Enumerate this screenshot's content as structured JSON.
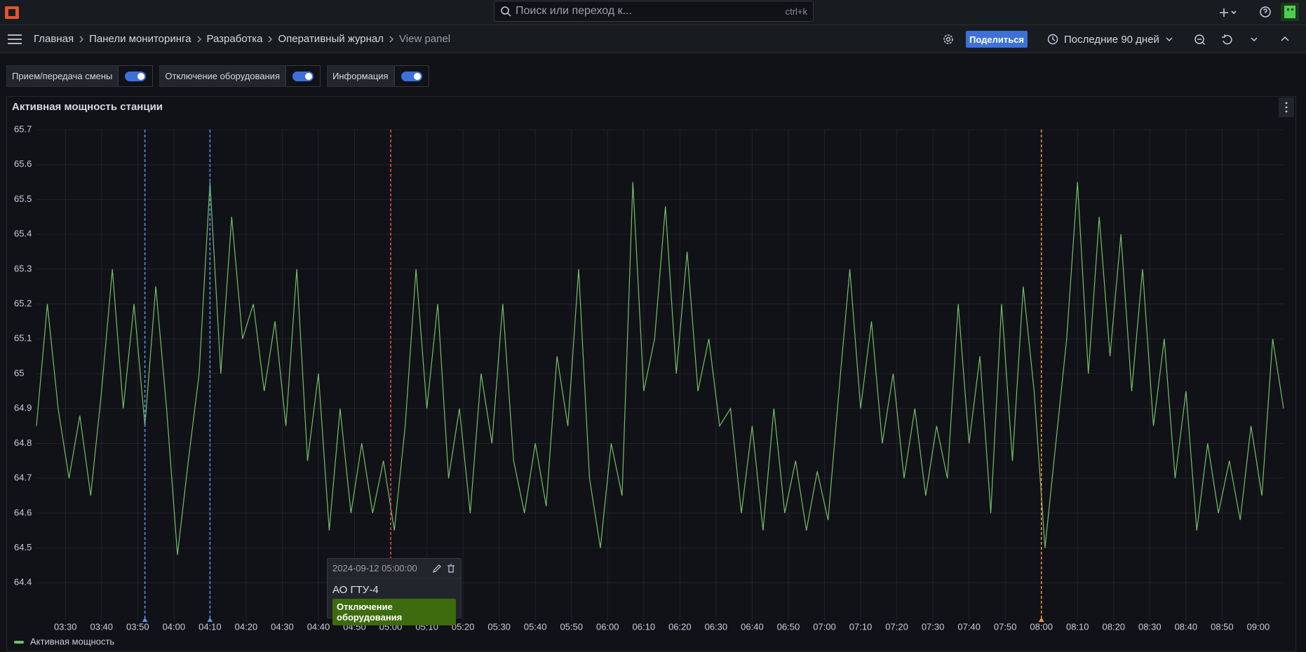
{
  "top_bar": {
    "search_placeholder": "Поиск или переход к...",
    "shortcut": "ctrl+k"
  },
  "breadcrumbs": [
    "Главная",
    "Панели мониторинга",
    "Разработка",
    "Оперативный журнал",
    "View panel"
  ],
  "toolbar": {
    "share": "Поделиться",
    "time_range": "Последние 90 дней"
  },
  "variables": [
    "Прием/передача смены",
    "Отключение оборудования",
    "Информация"
  ],
  "chart_data": {
    "type": "line",
    "title": "Активная мощность станции",
    "x": [
      "03:22",
      "03:25",
      "03:28",
      "03:31",
      "03:34",
      "03:37",
      "03:40",
      "03:43",
      "03:46",
      "03:49",
      "03:52",
      "03:55",
      "03:58",
      "04:01",
      "04:04",
      "04:07",
      "04:10",
      "04:13",
      "04:16",
      "04:19",
      "04:22",
      "04:25",
      "04:28",
      "04:31",
      "04:34",
      "04:37",
      "04:40",
      "04:43",
      "04:46",
      "04:49",
      "04:52",
      "04:55",
      "04:58",
      "05:01",
      "05:04",
      "05:07",
      "05:10",
      "05:13",
      "05:16",
      "05:19",
      "05:22",
      "05:25",
      "05:28",
      "05:31",
      "05:34",
      "05:37",
      "05:40",
      "05:43",
      "05:46",
      "05:49",
      "05:52",
      "05:55",
      "05:58",
      "06:01",
      "06:04",
      "06:07",
      "06:10",
      "06:13",
      "06:16",
      "06:19",
      "06:22",
      "06:25",
      "06:28",
      "06:31",
      "06:34",
      "06:37",
      "06:40",
      "06:43",
      "06:46",
      "06:49",
      "06:52",
      "06:55",
      "06:58",
      "07:01",
      "07:04",
      "07:07",
      "07:10",
      "07:13",
      "07:16",
      "07:19",
      "07:22",
      "07:25",
      "07:28",
      "07:31",
      "07:34",
      "07:37",
      "07:40",
      "07:43",
      "07:46",
      "07:49",
      "07:52",
      "07:55",
      "07:58",
      "08:01",
      "08:04",
      "08:07",
      "08:10",
      "08:13",
      "08:16",
      "08:19",
      "08:22",
      "08:25",
      "08:28",
      "08:31",
      "08:34",
      "08:37",
      "08:40",
      "08:43",
      "08:46",
      "08:49",
      "08:52",
      "08:55",
      "08:58",
      "09:01",
      "09:04",
      "09:07"
    ],
    "xlim": [
      "03:22",
      "09:07"
    ],
    "xticks": [
      "03:30",
      "03:40",
      "03:50",
      "04:00",
      "04:10",
      "04:20",
      "04:30",
      "04:40",
      "04:50",
      "05:00",
      "05:10",
      "05:20",
      "05:30",
      "05:40",
      "05:50",
      "06:00",
      "06:10",
      "06:20",
      "06:30",
      "06:40",
      "06:50",
      "07:00",
      "07:10",
      "07:20",
      "07:30",
      "07:40",
      "07:50",
      "08:00",
      "08:10",
      "08:20",
      "08:30",
      "08:40",
      "08:50",
      "09:00"
    ],
    "ylim": [
      64.29,
      65.7
    ],
    "yticks": [
      64.4,
      64.5,
      64.6,
      64.7,
      64.8,
      64.9,
      65,
      65.1,
      65.2,
      65.3,
      65.4,
      65.5,
      65.6,
      65.7
    ],
    "grid": true,
    "series": [
      {
        "name": "Активная мощность",
        "color": "#73bf69",
        "values": [
          64.85,
          65.2,
          64.9,
          64.7,
          64.88,
          64.65,
          64.95,
          65.3,
          64.9,
          65.2,
          64.85,
          65.25,
          64.9,
          64.48,
          64.75,
          65.0,
          65.55,
          65.0,
          65.45,
          65.1,
          65.2,
          64.95,
          65.15,
          64.85,
          65.3,
          64.75,
          65.0,
          64.55,
          64.9,
          64.6,
          64.8,
          64.6,
          64.75,
          64.55,
          64.85,
          65.3,
          64.9,
          65.2,
          64.7,
          64.9,
          64.6,
          65.0,
          64.8,
          65.2,
          64.75,
          64.6,
          64.8,
          64.62,
          65.05,
          64.85,
          65.3,
          64.7,
          64.5,
          64.8,
          64.65,
          65.55,
          64.95,
          65.1,
          65.48,
          65.0,
          65.35,
          64.95,
          65.1,
          64.85,
          64.9,
          64.6,
          64.85,
          64.55,
          64.9,
          64.6,
          64.75,
          64.55,
          64.72,
          64.58,
          64.95,
          65.3,
          64.9,
          65.15,
          64.8,
          65.0,
          64.7,
          64.9,
          64.65,
          64.85,
          64.7,
          65.2,
          64.8,
          65.05,
          64.6,
          65.2,
          64.75,
          65.25,
          64.95,
          64.5,
          64.8,
          65.1,
          65.55,
          65.0,
          65.45,
          65.05,
          65.4,
          64.95,
          65.3,
          64.85,
          65.1,
          64.7,
          64.95,
          64.55,
          64.8,
          64.6,
          64.75,
          64.58,
          64.85,
          64.65,
          65.1,
          64.9
        ]
      }
    ],
    "annotations": [
      {
        "x": "03:52",
        "color": "#5794f2"
      },
      {
        "x": "04:10",
        "color": "#5794f2"
      },
      {
        "x": "05:00",
        "color": "#f2495c"
      },
      {
        "x": "08:00",
        "color": "#ff9830"
      }
    ]
  },
  "tooltip": {
    "time": "2024-09-12 05:00:00",
    "title": "АО ГТУ-4",
    "tag": "Отключение оборудования"
  }
}
